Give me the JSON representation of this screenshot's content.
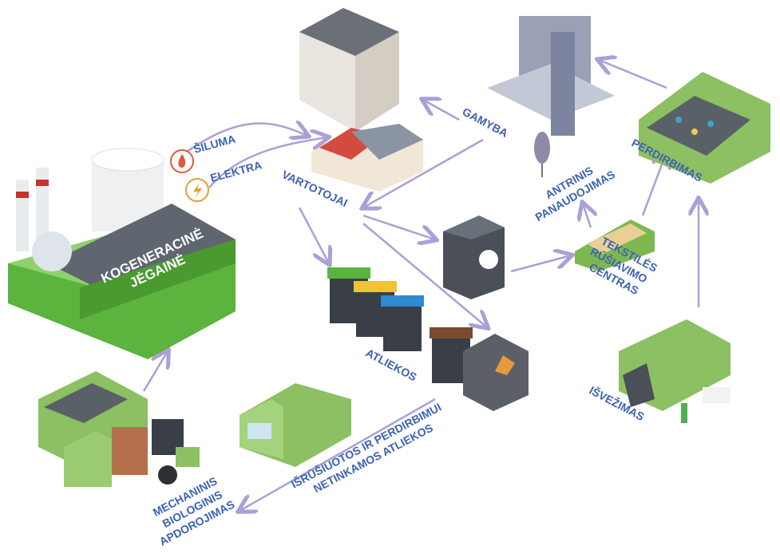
{
  "labels": [
    {
      "lines": [
        "ŠILUMA"
      ]
    },
    {
      "lines": [
        "ELEKTRA"
      ]
    },
    {
      "lines": [
        "KOGENERACINĖ",
        "JĖGAINĖ"
      ]
    },
    {
      "lines": [
        "GAMYBA"
      ]
    },
    {
      "lines": [
        "VARTOTOJAI"
      ]
    },
    {
      "lines": [
        "ANTRINIS",
        "PANAUDOJIMAS"
      ]
    },
    {
      "lines": [
        "PERDIRBIMAS"
      ]
    },
    {
      "lines": [
        "TEKSTILĖS",
        "RŪŠIAVIMO",
        "CENTRAS"
      ]
    },
    {
      "lines": [
        "ATLIEKOS"
      ]
    },
    {
      "lines": [
        "IŠVEŽIMAS"
      ]
    },
    {
      "lines": [
        "IŠRŪŠIUOTOS IR PERDIRBIMUI",
        "NETINKAMOS ATLIEKOS"
      ]
    },
    {
      "lines": [
        "MECHANINIS",
        "BIOLOGINIS",
        "APDOROJIMAS"
      ]
    }
  ]
}
